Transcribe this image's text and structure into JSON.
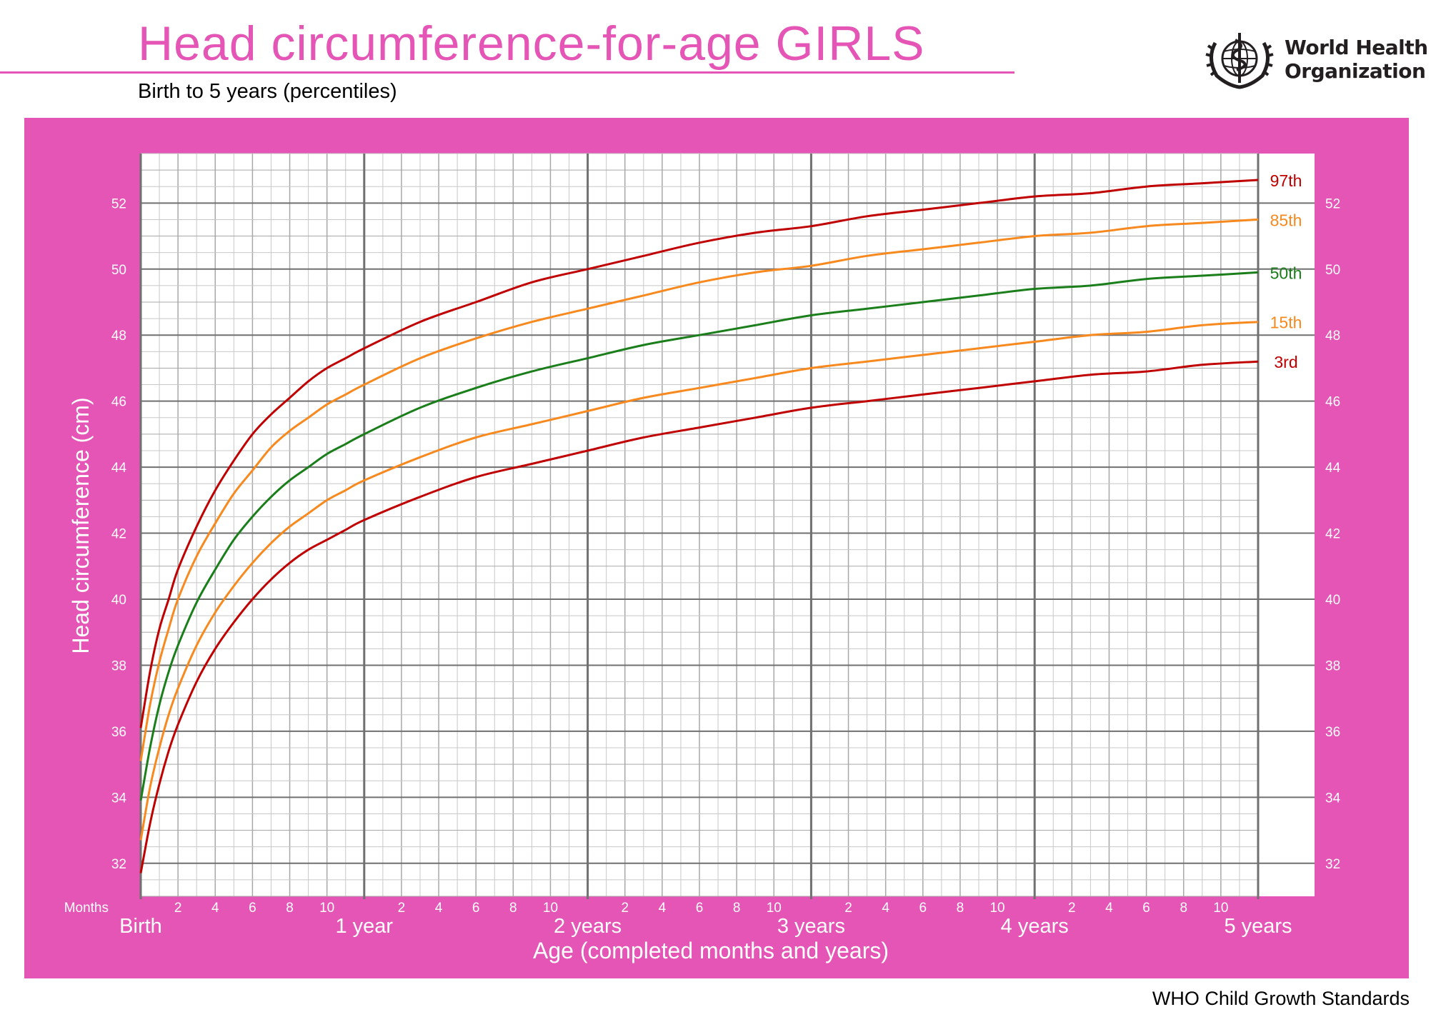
{
  "header": {
    "title": "Head circumference-for-age  GIRLS",
    "subtitle": "Birth to 5 years (percentiles)",
    "org_line1": "World Health",
    "org_line2": "Organization"
  },
  "footer": {
    "text": "WHO Child Growth Standards"
  },
  "colors": {
    "frame": "#e455b6",
    "grid_major": "#707070",
    "grid_minor": "#c8c8c8",
    "p3_p97": "#c00000",
    "p15_p85": "#f7891e",
    "p50": "#1a7e1a"
  },
  "chart_data": {
    "type": "line",
    "title": "Head circumference-for-age  GIRLS",
    "subtitle": "Birth to 5 years (percentiles)",
    "xlabel": "Age (completed months and years)",
    "ylabel": "Head circumference (cm)",
    "x_unit_label": "Months",
    "xlim": [
      0,
      60
    ],
    "ylim": [
      31,
      53.5
    ],
    "y_ticks": [
      32,
      34,
      36,
      38,
      40,
      42,
      44,
      46,
      48,
      50,
      52
    ],
    "x_year_ticks": [
      {
        "month": 0,
        "label": "Birth"
      },
      {
        "month": 12,
        "label": "1 year"
      },
      {
        "month": 24,
        "label": "2 years"
      },
      {
        "month": 36,
        "label": "3 years"
      },
      {
        "month": 48,
        "label": "4 years"
      },
      {
        "month": 60,
        "label": "5 years"
      }
    ],
    "x_month_tick_labels": [
      "2",
      "4",
      "6",
      "8",
      "10"
    ],
    "grid": true,
    "legend": "right-end labels",
    "x": [
      0,
      0.5,
      1,
      1.5,
      2,
      3,
      4,
      5,
      6,
      7,
      8,
      9,
      10,
      11,
      12,
      15,
      18,
      21,
      24,
      27,
      30,
      33,
      36,
      39,
      42,
      45,
      48,
      51,
      54,
      57,
      60
    ],
    "series": [
      {
        "name": "97th",
        "color": "#c00000",
        "values": [
          36.1,
          37.8,
          39.1,
          40.0,
          40.9,
          42.2,
          43.3,
          44.2,
          45.0,
          45.6,
          46.1,
          46.6,
          47.0,
          47.3,
          47.6,
          48.4,
          49.0,
          49.6,
          50.0,
          50.4,
          50.8,
          51.1,
          51.3,
          51.6,
          51.8,
          52.0,
          52.2,
          52.3,
          52.5,
          52.6,
          52.7
        ]
      },
      {
        "name": "85th",
        "color": "#f7891e",
        "values": [
          35.1,
          36.8,
          38.1,
          39.1,
          40.0,
          41.3,
          42.3,
          43.2,
          43.9,
          44.6,
          45.1,
          45.5,
          45.9,
          46.2,
          46.5,
          47.3,
          47.9,
          48.4,
          48.8,
          49.2,
          49.6,
          49.9,
          50.1,
          50.4,
          50.6,
          50.8,
          51.0,
          51.1,
          51.3,
          51.4,
          51.5
        ]
      },
      {
        "name": "50th",
        "color": "#1a7e1a",
        "values": [
          33.9,
          35.5,
          36.8,
          37.8,
          38.6,
          39.9,
          40.9,
          41.8,
          42.5,
          43.1,
          43.6,
          44.0,
          44.4,
          44.7,
          45.0,
          45.8,
          46.4,
          46.9,
          47.3,
          47.7,
          48.0,
          48.3,
          48.6,
          48.8,
          49.0,
          49.2,
          49.4,
          49.5,
          49.7,
          49.8,
          49.9
        ]
      },
      {
        "name": "15th",
        "color": "#f7891e",
        "values": [
          32.7,
          34.3,
          35.5,
          36.5,
          37.3,
          38.6,
          39.6,
          40.4,
          41.1,
          41.7,
          42.2,
          42.6,
          43.0,
          43.3,
          43.6,
          44.3,
          44.9,
          45.3,
          45.7,
          46.1,
          46.4,
          46.7,
          47.0,
          47.2,
          47.4,
          47.6,
          47.8,
          48.0,
          48.1,
          48.3,
          48.4
        ]
      },
      {
        "name": "3rd",
        "color": "#c00000",
        "values": [
          31.7,
          33.2,
          34.4,
          35.4,
          36.2,
          37.5,
          38.5,
          39.3,
          40.0,
          40.6,
          41.1,
          41.5,
          41.8,
          42.1,
          42.4,
          43.1,
          43.7,
          44.1,
          44.5,
          44.9,
          45.2,
          45.5,
          45.8,
          46.0,
          46.2,
          46.4,
          46.6,
          46.8,
          46.9,
          47.1,
          47.2
        ]
      }
    ]
  }
}
